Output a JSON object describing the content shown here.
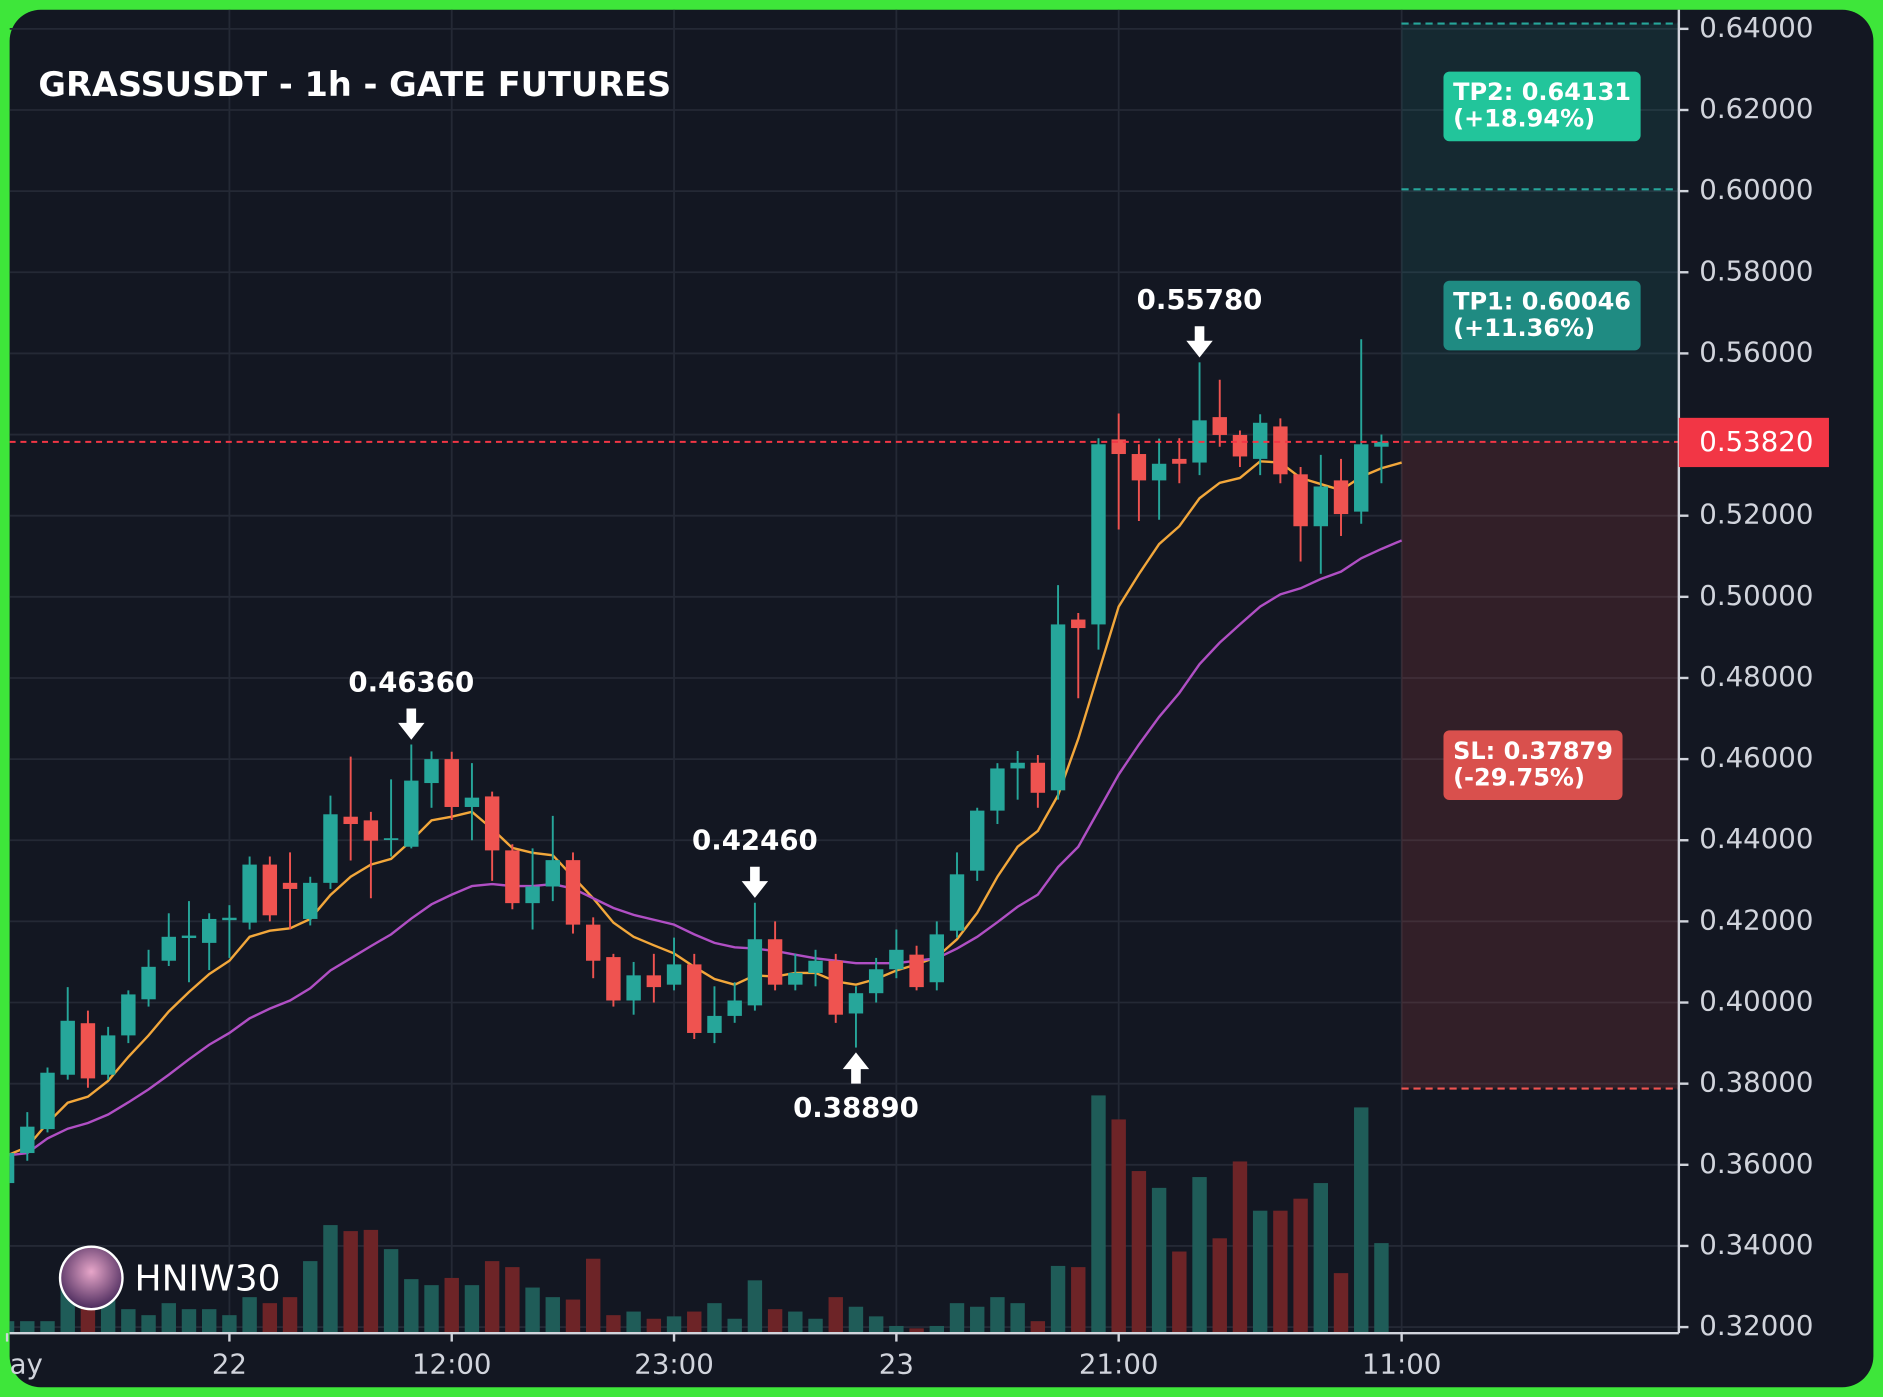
{
  "chart_data": {
    "type": "candlestick",
    "title": "GRASSUSDT - 1h - GATE FUTURES",
    "watermark": "HNIW30",
    "categories": [
      "ay",
      null,
      null,
      null,
      null,
      null,
      null,
      null,
      null,
      null,
      null,
      "22",
      null,
      null,
      null,
      null,
      null,
      null,
      null,
      null,
      null,
      null,
      "12:00",
      null,
      null,
      null,
      null,
      null,
      null,
      null,
      null,
      null,
      null,
      "23:00",
      null,
      null,
      null,
      null,
      null,
      null,
      null,
      null,
      null,
      null,
      "23",
      null,
      null,
      null,
      null,
      null,
      null,
      null,
      null,
      null,
      null,
      "21:00",
      null,
      null,
      null,
      null,
      null,
      null,
      null,
      null,
      null,
      null,
      null,
      null,
      null,
      "11:00"
    ],
    "open": [
      0.3555,
      0.3629,
      0.3688,
      0.3822,
      0.3949,
      0.3822,
      0.3919,
      0.4008,
      0.4103,
      0.4159,
      0.4147,
      0.4203,
      0.4197,
      0.434,
      0.4295,
      0.4206,
      0.4295,
      0.4458,
      0.4449,
      0.4402,
      0.4384,
      0.4541,
      0.46,
      0.4482,
      0.4508,
      0.4375,
      0.4245,
      0.4286,
      0.4351,
      0.4192,
      0.4112,
      0.4005,
      0.4067,
      0.4044,
      0.4094,
      0.3925,
      0.3967,
      0.3993,
      0.4156,
      0.4044,
      0.4073,
      0.4103,
      0.3973,
      0.4023,
      0.4082,
      0.4118,
      0.405,
      0.4177,
      0.4325,
      0.4473,
      0.4577,
      0.4591,
      0.4523,
      0.4944,
      0.4932,
      0.5388,
      0.5352,
      0.5287,
      0.534,
      0.5331,
      0.5443,
      0.5399,
      0.534,
      0.542,
      0.5302,
      0.5174,
      0.5287,
      0.521,
      0.537,
      null
    ],
    "high": [
      0.365,
      0.373,
      0.384,
      0.4038,
      0.398,
      0.394,
      0.403,
      0.413,
      0.422,
      0.425,
      0.422,
      0.424,
      0.436,
      0.436,
      0.437,
      0.431,
      0.451,
      0.4606,
      0.447,
      0.455,
      0.4636,
      0.4619,
      0.4618,
      0.459,
      0.452,
      0.439,
      0.438,
      0.446,
      0.437,
      0.421,
      0.412,
      0.41,
      0.412,
      0.416,
      0.412,
      0.404,
      0.405,
      0.4246,
      0.42,
      0.412,
      0.413,
      0.412,
      0.404,
      0.411,
      0.418,
      0.414,
      0.42,
      0.437,
      0.448,
      0.459,
      0.462,
      0.461,
      0.5029,
      0.496,
      0.5391,
      0.5452,
      0.5376,
      0.539,
      0.5391,
      0.5578,
      0.5535,
      0.541,
      0.545,
      0.544,
      0.532,
      0.535,
      0.534,
      0.5635,
      0.54,
      null
    ],
    "low": [
      0.354,
      0.361,
      0.368,
      0.381,
      0.379,
      0.381,
      0.39,
      0.399,
      0.409,
      0.405,
      0.408,
      0.411,
      0.418,
      0.42,
      0.418,
      0.419,
      0.428,
      0.435,
      0.4257,
      0.436,
      0.438,
      0.448,
      0.445,
      0.44,
      0.43,
      0.423,
      0.418,
      0.425,
      0.417,
      0.406,
      0.399,
      0.397,
      0.4,
      0.403,
      0.391,
      0.39,
      0.395,
      0.398,
      0.403,
      0.403,
      0.404,
      0.395,
      0.3889,
      0.4,
      0.406,
      0.403,
      0.403,
      0.416,
      0.43,
      0.444,
      0.45,
      0.448,
      0.45,
      0.475,
      0.487,
      0.5166,
      0.5187,
      0.519,
      0.528,
      0.53,
      0.537,
      0.532,
      0.53,
      0.528,
      0.5087,
      0.5057,
      0.515,
      0.518,
      0.528,
      null
    ],
    "close": [
      0.3629,
      0.3694,
      0.3827,
      0.3955,
      0.3813,
      0.3919,
      0.402,
      0.4088,
      0.4162,
      0.4165,
      0.4206,
      0.4209,
      0.434,
      0.4215,
      0.428,
      0.4295,
      0.4464,
      0.444,
      0.4399,
      0.4405,
      0.4547,
      0.46,
      0.4482,
      0.4505,
      0.4375,
      0.4245,
      0.4286,
      0.4351,
      0.4192,
      0.4103,
      0.4005,
      0.4067,
      0.4038,
      0.4094,
      0.3925,
      0.3967,
      0.4005,
      0.4156,
      0.4044,
      0.4073,
      0.4103,
      0.397,
      0.4023,
      0.4082,
      0.413,
      0.4038,
      0.4168,
      0.4316,
      0.4473,
      0.4577,
      0.4591,
      0.4517,
      0.4932,
      0.4923,
      0.5376,
      0.5352,
      0.5287,
      0.5328,
      0.5328,
      0.5435,
      0.5399,
      0.5346,
      0.5429,
      0.5302,
      0.5174,
      0.5272,
      0.5204,
      0.5376,
      0.5382,
      null
    ],
    "volume": [
      10,
      10,
      10,
      40,
      30,
      40,
      20,
      15,
      25,
      20,
      20,
      15,
      30,
      25,
      30,
      60,
      90,
      85,
      86,
      70,
      45,
      40,
      46,
      40,
      60,
      55,
      38,
      30,
      28,
      62,
      15,
      18,
      12,
      14,
      18,
      25,
      12,
      44,
      20,
      18,
      12,
      30,
      22,
      14,
      6,
      4,
      6,
      25,
      22,
      30,
      25,
      10,
      56,
      55,
      198,
      178,
      135,
      121,
      68,
      130,
      79,
      143,
      102,
      102,
      112,
      125,
      50,
      188,
      75,
      null
    ],
    "up_color": "#26a69a",
    "down_color": "#ef5350",
    "volume_up_color": "#1f5c58",
    "volume_down_color": "#6d2427",
    "lines": [
      {
        "color": "#f2a73b",
        "values": [
          0.3623,
          0.3644,
          0.3703,
          0.3753,
          0.3768,
          0.3807,
          0.3866,
          0.3919,
          0.3978,
          0.4026,
          0.407,
          0.4103,
          0.4162,
          0.4177,
          0.4183,
          0.4206,
          0.4265,
          0.431,
          0.434,
          0.4354,
          0.4399,
          0.4449,
          0.4458,
          0.447,
          0.4428,
          0.4381,
          0.4369,
          0.4363,
          0.431,
          0.4257,
          0.4197,
          0.4162,
          0.4141,
          0.4121,
          0.4088,
          0.4058,
          0.4044,
          0.4067,
          0.4064,
          0.4073,
          0.4073,
          0.4052,
          0.4044,
          0.4058,
          0.4079,
          0.4094,
          0.4112,
          0.4156,
          0.4221,
          0.431,
          0.4384,
          0.4423,
          0.4511,
          0.465,
          0.4813,
          0.4976,
          0.5056,
          0.513,
          0.5174,
          0.5243,
          0.5281,
          0.5293,
          0.5334,
          0.5331,
          0.5293,
          0.5278,
          0.5263,
          0.5296,
          0.5317,
          0.5331
        ]
      },
      {
        "color": "#b04fc4",
        "values": [
          0.3623,
          0.3629,
          0.3665,
          0.3689,
          0.3703,
          0.3724,
          0.3754,
          0.3786,
          0.3822,
          0.386,
          0.3896,
          0.3925,
          0.3961,
          0.3985,
          0.4005,
          0.4035,
          0.4079,
          0.4109,
          0.4139,
          0.4168,
          0.4207,
          0.4242,
          0.4266,
          0.4287,
          0.4292,
          0.4287,
          0.4287,
          0.4292,
          0.4281,
          0.4257,
          0.4233,
          0.4216,
          0.4204,
          0.4192,
          0.4168,
          0.4147,
          0.4136,
          0.4133,
          0.4127,
          0.4118,
          0.4109,
          0.4103,
          0.4097,
          0.4097,
          0.4097,
          0.4103,
          0.4109,
          0.4133,
          0.4162,
          0.4198,
          0.4236,
          0.4266,
          0.4334,
          0.4384,
          0.4473,
          0.4562,
          0.4636,
          0.4704,
          0.4763,
          0.4834,
          0.4887,
          0.4932,
          0.4976,
          0.5006,
          0.5021,
          0.5044,
          0.5062,
          0.5095,
          0.5118,
          0.5139
        ]
      }
    ],
    "annotations": [
      {
        "text": "0.46360",
        "value": 0.4636,
        "marker": "down"
      },
      {
        "text": "0.42460",
        "value": 0.4246,
        "marker": "down"
      },
      {
        "text": "0.38890",
        "value": 0.3889,
        "marker": "up"
      },
      {
        "text": "0.55780",
        "value": 0.5578,
        "marker": "down"
      }
    ],
    "last_price": {
      "value": 0.5382,
      "label": "0.53820",
      "color": "#f23645"
    },
    "levels": [
      {
        "text": "TP2: 0.64131",
        "change": "(+18.94%)",
        "value": 0.64131,
        "color": "#22c59b",
        "line_color": "#26a69a",
        "zone_color": "rgba(38,166,154,0.13)"
      },
      {
        "text": "TP1: 0.60046",
        "change": "(+11.36%)",
        "value": 0.60046,
        "color": "#1f8b82",
        "line_color": "#26a69a",
        "zone_color": "rgba(38,166,154,0.13)"
      },
      {
        "text": "SL: 0.37879",
        "change": "(-29.75%)",
        "value": 0.37879,
        "color": "#d9504d",
        "line_color": "#ef5350",
        "zone_color": "rgba(239,83,80,0.14)"
      }
    ],
    "ylim": [
      0.3185,
      0.6447
    ],
    "yticks": [
      {
        "value": 0.32,
        "label": "0.32000"
      },
      {
        "value": 0.34,
        "label": "0.34000"
      },
      {
        "value": 0.36,
        "label": "0.36000"
      },
      {
        "value": 0.38,
        "label": "0.38000"
      },
      {
        "value": 0.4,
        "label": "0.40000"
      },
      {
        "value": 0.42,
        "label": "0.42000"
      },
      {
        "value": 0.44,
        "label": "0.44000"
      },
      {
        "value": 0.46,
        "label": "0.46000"
      },
      {
        "value": 0.48,
        "label": "0.48000"
      },
      {
        "value": 0.5,
        "label": "0.50000"
      },
      {
        "value": 0.52,
        "label": "0.52000"
      },
      {
        "value": 0.54,
        "label": "0.54000"
      },
      {
        "value": 0.56,
        "label": "0.56000"
      },
      {
        "value": 0.58,
        "label": "0.58000"
      },
      {
        "value": 0.6,
        "label": "0.60000"
      },
      {
        "value": 0.62,
        "label": "0.62000"
      },
      {
        "value": 0.64,
        "label": "0.64000"
      }
    ],
    "grid": true
  }
}
